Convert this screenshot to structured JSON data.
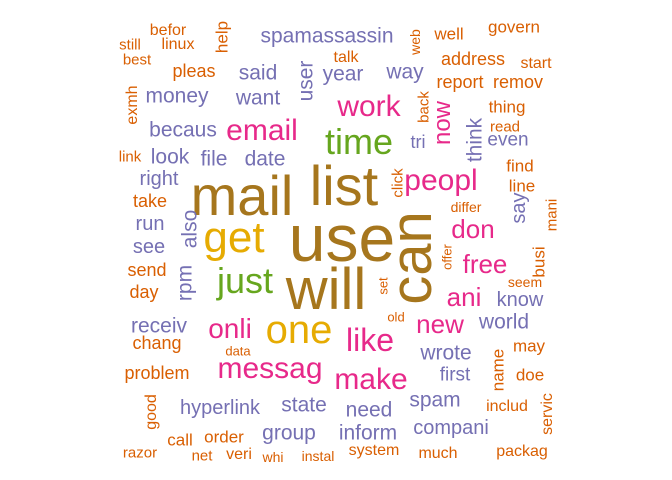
{
  "palette": {
    "brown": "#a6761d",
    "gold": "#e6ab02",
    "green": "#66a61e",
    "magenta": "#e7298a",
    "purple": "#7570b3",
    "orange": "#d95f02"
  },
  "words": [
    {
      "text": "mail",
      "color": "brown"
    },
    {
      "text": "list",
      "color": "brown"
    },
    {
      "text": "use",
      "color": "brown"
    },
    {
      "text": "can",
      "color": "brown"
    },
    {
      "text": "will",
      "color": "brown"
    },
    {
      "text": "get",
      "color": "gold"
    },
    {
      "text": "one",
      "color": "gold"
    },
    {
      "text": "time",
      "color": "green"
    },
    {
      "text": "just",
      "color": "green"
    },
    {
      "text": "email",
      "color": "magenta"
    },
    {
      "text": "work",
      "color": "magenta"
    },
    {
      "text": "peopl",
      "color": "magenta"
    },
    {
      "text": "like",
      "color": "magenta"
    },
    {
      "text": "make",
      "color": "magenta"
    },
    {
      "text": "messag",
      "color": "magenta"
    },
    {
      "text": "onli",
      "color": "magenta"
    },
    {
      "text": "new",
      "color": "magenta"
    },
    {
      "text": "don",
      "color": "magenta"
    },
    {
      "text": "free",
      "color": "magenta"
    },
    {
      "text": "ani",
      "color": "magenta"
    },
    {
      "text": "now",
      "color": "magenta"
    },
    {
      "text": "spamassassin",
      "color": "purple"
    },
    {
      "text": "said",
      "color": "purple"
    },
    {
      "text": "year",
      "color": "purple"
    },
    {
      "text": "user",
      "color": "purple"
    },
    {
      "text": "way",
      "color": "purple"
    },
    {
      "text": "money",
      "color": "purple"
    },
    {
      "text": "want",
      "color": "purple"
    },
    {
      "text": "becaus",
      "color": "purple"
    },
    {
      "text": "look",
      "color": "purple"
    },
    {
      "text": "file",
      "color": "purple"
    },
    {
      "text": "date",
      "color": "purple"
    },
    {
      "text": "think",
      "color": "purple"
    },
    {
      "text": "tri",
      "color": "purple"
    },
    {
      "text": "even",
      "color": "purple"
    },
    {
      "text": "also",
      "color": "purple"
    },
    {
      "text": "rpm",
      "color": "purple"
    },
    {
      "text": "receiv",
      "color": "purple"
    },
    {
      "text": "world",
      "color": "purple"
    },
    {
      "text": "know",
      "color": "purple"
    },
    {
      "text": "say",
      "color": "purple"
    },
    {
      "text": "wrote",
      "color": "purple"
    },
    {
      "text": "first",
      "color": "purple"
    },
    {
      "text": "spam",
      "color": "purple"
    },
    {
      "text": "hyperlink",
      "color": "purple"
    },
    {
      "text": "state",
      "color": "purple"
    },
    {
      "text": "need",
      "color": "purple"
    },
    {
      "text": "group",
      "color": "purple"
    },
    {
      "text": "inform",
      "color": "purple"
    },
    {
      "text": "compani",
      "color": "purple"
    },
    {
      "text": "right",
      "color": "purple"
    },
    {
      "text": "run",
      "color": "purple"
    },
    {
      "text": "see",
      "color": "purple"
    },
    {
      "text": "befor",
      "color": "orange"
    },
    {
      "text": "still",
      "color": "orange"
    },
    {
      "text": "linux",
      "color": "orange"
    },
    {
      "text": "help",
      "color": "orange"
    },
    {
      "text": "talk",
      "color": "orange"
    },
    {
      "text": "web",
      "color": "orange"
    },
    {
      "text": "well",
      "color": "orange"
    },
    {
      "text": "govern",
      "color": "orange"
    },
    {
      "text": "best",
      "color": "orange"
    },
    {
      "text": "pleas",
      "color": "orange"
    },
    {
      "text": "address",
      "color": "orange"
    },
    {
      "text": "start",
      "color": "orange"
    },
    {
      "text": "report",
      "color": "orange"
    },
    {
      "text": "remov",
      "color": "orange"
    },
    {
      "text": "exmh",
      "color": "orange"
    },
    {
      "text": "back",
      "color": "orange"
    },
    {
      "text": "thing",
      "color": "orange"
    },
    {
      "text": "read",
      "color": "orange"
    },
    {
      "text": "link",
      "color": "orange"
    },
    {
      "text": "find",
      "color": "orange"
    },
    {
      "text": "click",
      "color": "orange"
    },
    {
      "text": "line",
      "color": "orange"
    },
    {
      "text": "take",
      "color": "orange"
    },
    {
      "text": "differ",
      "color": "orange"
    },
    {
      "text": "mani",
      "color": "orange"
    },
    {
      "text": "busi",
      "color": "orange"
    },
    {
      "text": "send",
      "color": "orange"
    },
    {
      "text": "offer",
      "color": "orange"
    },
    {
      "text": "seem",
      "color": "orange"
    },
    {
      "text": "day",
      "color": "orange"
    },
    {
      "text": "set",
      "color": "orange"
    },
    {
      "text": "old",
      "color": "orange"
    },
    {
      "text": "chang",
      "color": "orange"
    },
    {
      "text": "data",
      "color": "orange"
    },
    {
      "text": "may",
      "color": "orange"
    },
    {
      "text": "name",
      "color": "orange"
    },
    {
      "text": "problem",
      "color": "orange"
    },
    {
      "text": "doe",
      "color": "orange"
    },
    {
      "text": "good",
      "color": "orange"
    },
    {
      "text": "includ",
      "color": "orange"
    },
    {
      "text": "servic",
      "color": "orange"
    },
    {
      "text": "call",
      "color": "orange"
    },
    {
      "text": "order",
      "color": "orange"
    },
    {
      "text": "razor",
      "color": "orange"
    },
    {
      "text": "net",
      "color": "orange"
    },
    {
      "text": "veri",
      "color": "orange"
    },
    {
      "text": "whi",
      "color": "orange"
    },
    {
      "text": "instal",
      "color": "orange"
    },
    {
      "text": "system",
      "color": "orange"
    },
    {
      "text": "much",
      "color": "orange"
    },
    {
      "text": "packag",
      "color": "orange"
    }
  ]
}
